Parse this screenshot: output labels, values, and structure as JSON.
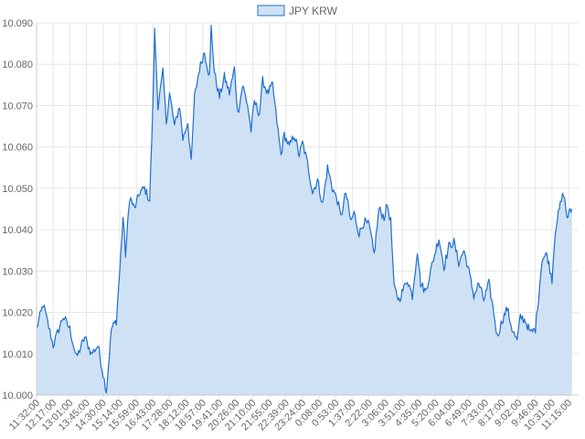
{
  "chart_data": {
    "type": "area",
    "title": "",
    "xlabel": "",
    "ylabel": "",
    "legend": {
      "position": "top-center",
      "entries": [
        "JPY KRW"
      ]
    },
    "grid": true,
    "colors": {
      "line": "#1f6fcf",
      "fill": "#cfe1f5",
      "grid": "#e6e6e6"
    },
    "ylim": [
      10.0,
      10.09
    ],
    "y_ticks": [
      "10.000",
      "10.010",
      "10.020",
      "10.030",
      "10.040",
      "10.050",
      "10.060",
      "10.070",
      "10.080",
      "10.090"
    ],
    "x_tick_labels": [
      "11:32:00",
      "12:17:00",
      "13:01:00",
      "13:45:00",
      "14:30:00",
      "15:14:00",
      "15:59:00",
      "16:43:00",
      "17:28:00",
      "18:12:00",
      "18:57:00",
      "19:41:00",
      "20:26:00",
      "21:10:00",
      "21:55:00",
      "22:39:00",
      "23:24:00",
      "0:08:00",
      "0:53:00",
      "1:37:00",
      "2:22:00",
      "3:06:00",
      "3:51:00",
      "4:35:00",
      "5:20:00",
      "6:04:00",
      "6:49:00",
      "7:33:00",
      "8:17:00",
      "9:02:00",
      "9:46:00",
      "10:31:00",
      "11:15:00"
    ],
    "series": [
      {
        "name": "JPY KRW",
        "anchors": [
          [
            0.0,
            10.016
          ],
          [
            0.4,
            10.022
          ],
          [
            1.0,
            10.012
          ],
          [
            1.6,
            10.019
          ],
          [
            2.0,
            10.016
          ],
          [
            2.4,
            10.009
          ],
          [
            2.9,
            10.014
          ],
          [
            3.3,
            10.01
          ],
          [
            3.7,
            10.012
          ],
          [
            4.0,
            10.005
          ],
          [
            4.2,
            10.001
          ],
          [
            4.5,
            10.016
          ],
          [
            4.8,
            10.018
          ],
          [
            5.0,
            10.03
          ],
          [
            5.2,
            10.043
          ],
          [
            5.35,
            10.034
          ],
          [
            5.6,
            10.048
          ],
          [
            5.9,
            10.045
          ],
          [
            6.2,
            10.049
          ],
          [
            6.5,
            10.05
          ],
          [
            6.8,
            10.047
          ],
          [
            7.0,
            10.07
          ],
          [
            7.1,
            10.088
          ],
          [
            7.3,
            10.07
          ],
          [
            7.6,
            10.078
          ],
          [
            7.8,
            10.066
          ],
          [
            8.0,
            10.073
          ],
          [
            8.3,
            10.065
          ],
          [
            8.6,
            10.07
          ],
          [
            8.8,
            10.062
          ],
          [
            9.1,
            10.066
          ],
          [
            9.3,
            10.056
          ],
          [
            9.5,
            10.072
          ],
          [
            9.8,
            10.079
          ],
          [
            10.1,
            10.083
          ],
          [
            10.4,
            10.077
          ],
          [
            10.5,
            10.089
          ],
          [
            10.7,
            10.078
          ],
          [
            11.0,
            10.072
          ],
          [
            11.3,
            10.077
          ],
          [
            11.6,
            10.073
          ],
          [
            11.9,
            10.079
          ],
          [
            12.1,
            10.068
          ],
          [
            12.4,
            10.075
          ],
          [
            12.7,
            10.07
          ],
          [
            12.9,
            10.064
          ],
          [
            13.1,
            10.071
          ],
          [
            13.4,
            10.068
          ],
          [
            13.6,
            10.076
          ],
          [
            13.9,
            10.073
          ],
          [
            14.2,
            10.075
          ],
          [
            14.4,
            10.068
          ],
          [
            14.7,
            10.058
          ],
          [
            14.9,
            10.063
          ],
          [
            15.2,
            10.06
          ],
          [
            15.5,
            10.063
          ],
          [
            15.8,
            10.058
          ],
          [
            16.0,
            10.061
          ],
          [
            16.3,
            10.056
          ],
          [
            16.6,
            10.049
          ],
          [
            16.9,
            10.052
          ],
          [
            17.2,
            10.046
          ],
          [
            17.5,
            10.055
          ],
          [
            17.8,
            10.05
          ],
          [
            18.1,
            10.047
          ],
          [
            18.3,
            10.043
          ],
          [
            18.6,
            10.049
          ],
          [
            18.9,
            10.042
          ],
          [
            19.1,
            10.044
          ],
          [
            19.4,
            10.039
          ],
          [
            19.7,
            10.042
          ],
          [
            20.0,
            10.041
          ],
          [
            20.3,
            10.034
          ],
          [
            20.6,
            10.045
          ],
          [
            20.9,
            10.043
          ],
          [
            21.1,
            10.046
          ],
          [
            21.3,
            10.042
          ],
          [
            21.5,
            10.026
          ],
          [
            21.8,
            10.023
          ],
          [
            22.1,
            10.026
          ],
          [
            22.3,
            10.028
          ],
          [
            22.6,
            10.024
          ],
          [
            22.9,
            10.035
          ],
          [
            23.1,
            10.027
          ],
          [
            23.4,
            10.025
          ],
          [
            23.7,
            10.03
          ],
          [
            24.0,
            10.035
          ],
          [
            24.2,
            10.038
          ],
          [
            24.5,
            10.031
          ],
          [
            24.8,
            10.036
          ],
          [
            25.1,
            10.037
          ],
          [
            25.4,
            10.032
          ],
          [
            25.7,
            10.035
          ],
          [
            26.0,
            10.03
          ],
          [
            26.3,
            10.024
          ],
          [
            26.6,
            10.027
          ],
          [
            26.9,
            10.023
          ],
          [
            27.2,
            10.027
          ],
          [
            27.5,
            10.02
          ],
          [
            27.7,
            10.014
          ],
          [
            28.0,
            10.018
          ],
          [
            28.3,
            10.021
          ],
          [
            28.6,
            10.016
          ],
          [
            28.9,
            10.013
          ],
          [
            29.1,
            10.019
          ],
          [
            29.4,
            10.018
          ],
          [
            29.7,
            10.015
          ],
          [
            30.0,
            10.016
          ],
          [
            30.2,
            10.024
          ],
          [
            30.4,
            10.033
          ],
          [
            30.7,
            10.034
          ],
          [
            31.0,
            10.028
          ],
          [
            31.2,
            10.04
          ],
          [
            31.5,
            10.046
          ],
          [
            31.7,
            10.049
          ],
          [
            31.9,
            10.043
          ],
          [
            32.2,
            10.045
          ]
        ]
      }
    ]
  }
}
